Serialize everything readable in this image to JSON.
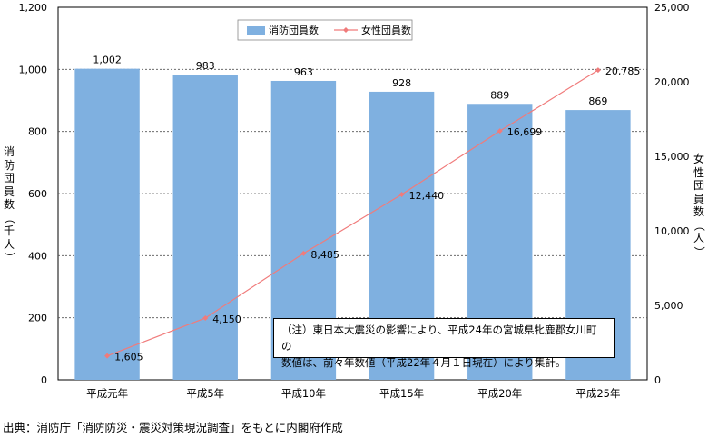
{
  "chart_data": {
    "type": "bar+line",
    "categories": [
      "平成元年",
      "平成5年",
      "平成10年",
      "平成15年",
      "平成20年",
      "平成25年"
    ],
    "series": [
      {
        "name": "消防団員数",
        "type": "bar",
        "axis": "left",
        "values": [
          1002,
          983,
          963,
          928,
          889,
          869
        ],
        "labels": [
          "1,002",
          "983",
          "963",
          "928",
          "889",
          "869"
        ],
        "color": "#7fb0e0"
      },
      {
        "name": "女性団員数",
        "type": "line",
        "axis": "right",
        "values": [
          1605,
          4150,
          8485,
          12440,
          16699,
          20785
        ],
        "labels": [
          "1,605",
          "4,150",
          "8,485",
          "12,440",
          "16,699",
          "20,785"
        ],
        "color": "#f07b7b"
      }
    ],
    "ylabel_left": "消防団員数（千人）",
    "ylabel_right": "女性団員数（人）",
    "ylim_left": [
      0,
      1200
    ],
    "ylim_right": [
      0,
      25000
    ],
    "yticks_left": [
      "0",
      "200",
      "400",
      "600",
      "800",
      "1,000",
      "1,200"
    ],
    "yticks_right": [
      "0",
      "5,000",
      "10,000",
      "15,000",
      "20,000",
      "25,000"
    ],
    "legend_position": "top-center",
    "grid": "dotted horizontal"
  },
  "note_lines": [
    "（注）東日本大震災の影響により、平成24年の宮城県牝鹿郡女川町の",
    "数値は、前々年数値（平成22年４月１日現在）により集計。"
  ],
  "source": "出典：消防庁「消防防災・震災対策現況調査」をもとに内閣府作成"
}
